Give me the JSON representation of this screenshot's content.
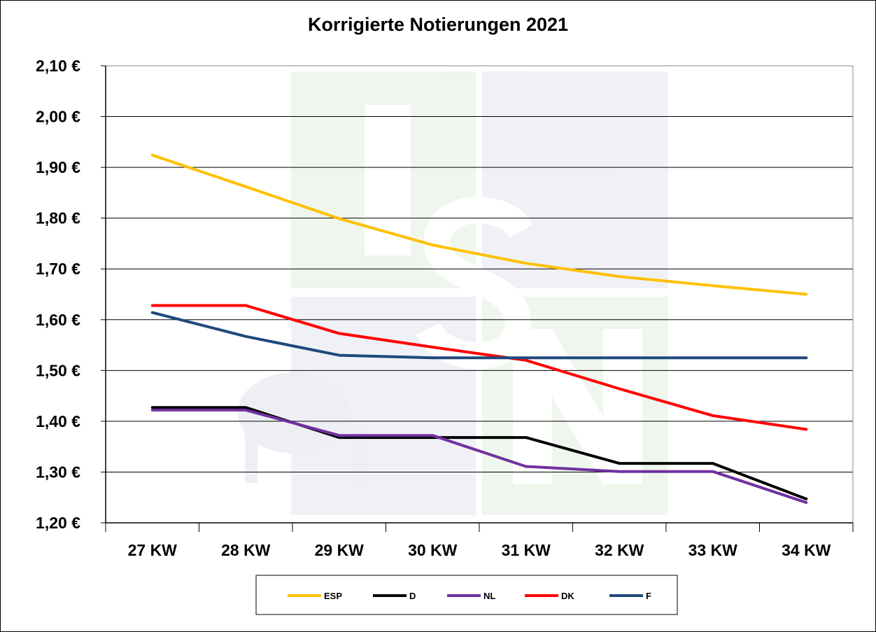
{
  "chart_data": {
    "type": "line",
    "title": "Korrigierte Notierungen 2021",
    "categories": [
      "27 KW",
      "28 KW",
      "29 KW",
      "30 KW",
      "31 KW",
      "32 KW",
      "33 KW",
      "34 KW"
    ],
    "ylim": [
      1.2,
      2.1
    ],
    "yticks": [
      1.2,
      1.3,
      1.4,
      1.5,
      1.6,
      1.7,
      1.8,
      1.9,
      2.0,
      2.1
    ],
    "ytick_labels": [
      "1,20 €",
      "1,30 €",
      "1,40 €",
      "1,50 €",
      "1,60 €",
      "1,70 €",
      "1,80 €",
      "1,90 €",
      "2,00 €",
      "2,10 €"
    ],
    "grid": true,
    "legend_position": "bottom",
    "series": [
      {
        "name": "ESP",
        "color": "#FFC000",
        "values": [
          1.924,
          1.862,
          1.799,
          1.747,
          1.711,
          1.685,
          1.667,
          1.65
        ]
      },
      {
        "name": "D",
        "color": "#000000",
        "values": [
          1.427,
          1.427,
          1.368,
          1.368,
          1.368,
          1.317,
          1.317,
          1.247
        ]
      },
      {
        "name": "NL",
        "color": "#7030A0",
        "values": [
          1.422,
          1.422,
          1.372,
          1.372,
          1.311,
          1.301,
          1.301,
          1.24
        ]
      },
      {
        "name": "DK",
        "color": "#FF0000",
        "values": [
          1.628,
          1.628,
          1.573,
          1.546,
          1.52,
          1.464,
          1.411,
          1.384
        ]
      },
      {
        "name": "F",
        "color": "#1F497D",
        "values": [
          1.614,
          1.567,
          1.53,
          1.525,
          1.525,
          1.525,
          1.525,
          1.525
        ]
      }
    ]
  }
}
